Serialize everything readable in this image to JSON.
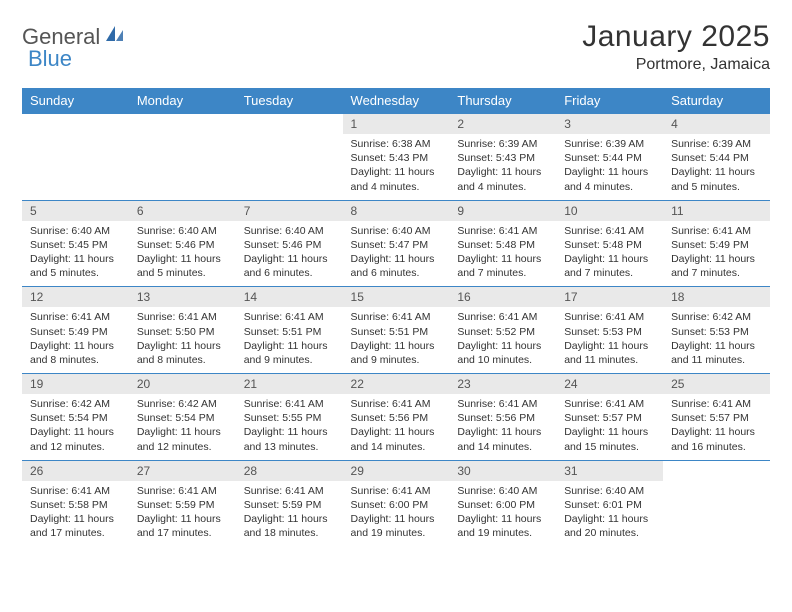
{
  "brand": {
    "text1": "General",
    "text2": "Blue",
    "text1_color": "#6a6a6a",
    "text2_color": "#3d86c6",
    "icon_color": "#2f6aa8"
  },
  "title": "January 2025",
  "location": "Portmore, Jamaica",
  "colors": {
    "header_bg": "#3d86c6",
    "header_text": "#ffffff",
    "daynum_bg": "#e9e9e9",
    "border": "#3d86c6",
    "body_text": "#333333"
  },
  "weekdays": [
    "Sunday",
    "Monday",
    "Tuesday",
    "Wednesday",
    "Thursday",
    "Friday",
    "Saturday"
  ],
  "first_weekday_index": 3,
  "days": [
    {
      "n": 1,
      "sunrise": "6:38 AM",
      "sunset": "5:43 PM",
      "daylight": "11 hours and 4 minutes."
    },
    {
      "n": 2,
      "sunrise": "6:39 AM",
      "sunset": "5:43 PM",
      "daylight": "11 hours and 4 minutes."
    },
    {
      "n": 3,
      "sunrise": "6:39 AM",
      "sunset": "5:44 PM",
      "daylight": "11 hours and 4 minutes."
    },
    {
      "n": 4,
      "sunrise": "6:39 AM",
      "sunset": "5:44 PM",
      "daylight": "11 hours and 5 minutes."
    },
    {
      "n": 5,
      "sunrise": "6:40 AM",
      "sunset": "5:45 PM",
      "daylight": "11 hours and 5 minutes."
    },
    {
      "n": 6,
      "sunrise": "6:40 AM",
      "sunset": "5:46 PM",
      "daylight": "11 hours and 5 minutes."
    },
    {
      "n": 7,
      "sunrise": "6:40 AM",
      "sunset": "5:46 PM",
      "daylight": "11 hours and 6 minutes."
    },
    {
      "n": 8,
      "sunrise": "6:40 AM",
      "sunset": "5:47 PM",
      "daylight": "11 hours and 6 minutes."
    },
    {
      "n": 9,
      "sunrise": "6:41 AM",
      "sunset": "5:48 PM",
      "daylight": "11 hours and 7 minutes."
    },
    {
      "n": 10,
      "sunrise": "6:41 AM",
      "sunset": "5:48 PM",
      "daylight": "11 hours and 7 minutes."
    },
    {
      "n": 11,
      "sunrise": "6:41 AM",
      "sunset": "5:49 PM",
      "daylight": "11 hours and 7 minutes."
    },
    {
      "n": 12,
      "sunrise": "6:41 AM",
      "sunset": "5:49 PM",
      "daylight": "11 hours and 8 minutes."
    },
    {
      "n": 13,
      "sunrise": "6:41 AM",
      "sunset": "5:50 PM",
      "daylight": "11 hours and 8 minutes."
    },
    {
      "n": 14,
      "sunrise": "6:41 AM",
      "sunset": "5:51 PM",
      "daylight": "11 hours and 9 minutes."
    },
    {
      "n": 15,
      "sunrise": "6:41 AM",
      "sunset": "5:51 PM",
      "daylight": "11 hours and 9 minutes."
    },
    {
      "n": 16,
      "sunrise": "6:41 AM",
      "sunset": "5:52 PM",
      "daylight": "11 hours and 10 minutes."
    },
    {
      "n": 17,
      "sunrise": "6:41 AM",
      "sunset": "5:53 PM",
      "daylight": "11 hours and 11 minutes."
    },
    {
      "n": 18,
      "sunrise": "6:42 AM",
      "sunset": "5:53 PM",
      "daylight": "11 hours and 11 minutes."
    },
    {
      "n": 19,
      "sunrise": "6:42 AM",
      "sunset": "5:54 PM",
      "daylight": "11 hours and 12 minutes."
    },
    {
      "n": 20,
      "sunrise": "6:42 AM",
      "sunset": "5:54 PM",
      "daylight": "11 hours and 12 minutes."
    },
    {
      "n": 21,
      "sunrise": "6:41 AM",
      "sunset": "5:55 PM",
      "daylight": "11 hours and 13 minutes."
    },
    {
      "n": 22,
      "sunrise": "6:41 AM",
      "sunset": "5:56 PM",
      "daylight": "11 hours and 14 minutes."
    },
    {
      "n": 23,
      "sunrise": "6:41 AM",
      "sunset": "5:56 PM",
      "daylight": "11 hours and 14 minutes."
    },
    {
      "n": 24,
      "sunrise": "6:41 AM",
      "sunset": "5:57 PM",
      "daylight": "11 hours and 15 minutes."
    },
    {
      "n": 25,
      "sunrise": "6:41 AM",
      "sunset": "5:57 PM",
      "daylight": "11 hours and 16 minutes."
    },
    {
      "n": 26,
      "sunrise": "6:41 AM",
      "sunset": "5:58 PM",
      "daylight": "11 hours and 17 minutes."
    },
    {
      "n": 27,
      "sunrise": "6:41 AM",
      "sunset": "5:59 PM",
      "daylight": "11 hours and 17 minutes."
    },
    {
      "n": 28,
      "sunrise": "6:41 AM",
      "sunset": "5:59 PM",
      "daylight": "11 hours and 18 minutes."
    },
    {
      "n": 29,
      "sunrise": "6:41 AM",
      "sunset": "6:00 PM",
      "daylight": "11 hours and 19 minutes."
    },
    {
      "n": 30,
      "sunrise": "6:40 AM",
      "sunset": "6:00 PM",
      "daylight": "11 hours and 19 minutes."
    },
    {
      "n": 31,
      "sunrise": "6:40 AM",
      "sunset": "6:01 PM",
      "daylight": "11 hours and 20 minutes."
    }
  ],
  "labels": {
    "sunrise": "Sunrise:",
    "sunset": "Sunset:",
    "daylight": "Daylight:"
  }
}
